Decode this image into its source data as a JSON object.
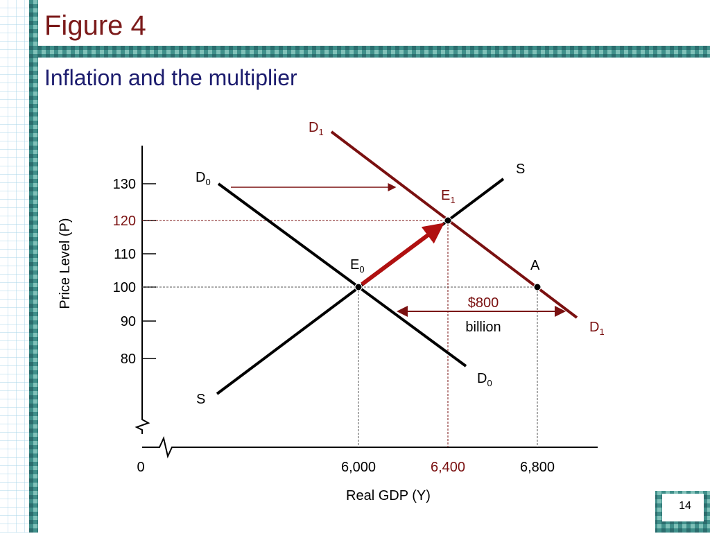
{
  "slide": {
    "title": "Figure 4",
    "subtitle": "Inflation and the multiplier",
    "page_number": "14"
  },
  "diagram": {
    "y_axis_label": "Price Level (P)",
    "x_axis_label": "Real GDP (Y)",
    "y_ticks": [
      "130",
      "120",
      "110",
      "100",
      "90",
      "80"
    ],
    "x_ticks": [
      "0",
      "6,000",
      "6,400",
      "6,800"
    ],
    "curve_labels": [
      {
        "letter": "D",
        "sub": "1"
      },
      {
        "letter": "S"
      },
      {
        "letter": "D",
        "sub": "0"
      },
      {
        "letter": "D",
        "sub": "1"
      },
      {
        "letter": "D",
        "sub": "0"
      },
      {
        "letter": "S"
      }
    ],
    "points": [
      {
        "letter": "E",
        "sub": "1"
      },
      {
        "letter": "E",
        "sub": "0"
      },
      {
        "letter": "A"
      }
    ],
    "annotation": [
      "$800",
      "billion"
    ]
  }
}
